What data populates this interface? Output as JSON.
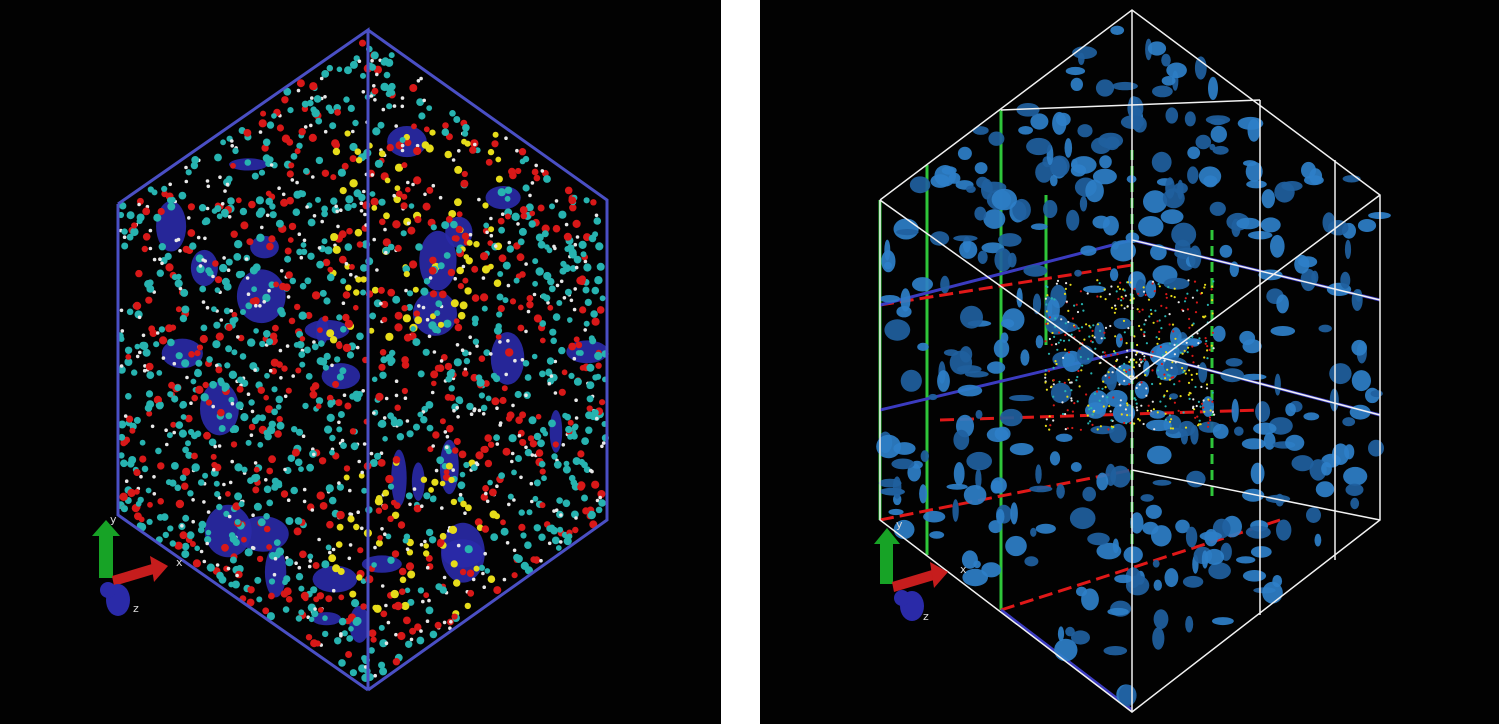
{
  "left_panel": {
    "frame_color": "#4a4fc4",
    "atom_colors": [
      "#27b3b0",
      "#e8e8e8",
      "#d81818",
      "#e6dc1a"
    ],
    "surface_color": "#2a2aa8",
    "axes": {
      "x": "x",
      "y": "y",
      "z": "z"
    }
  },
  "right_panel": {
    "frame_color": "#f2f2f2",
    "grid_colors": {
      "green": "#2fc63a",
      "red": "#e01818",
      "blue": "#3b3bc0"
    },
    "surface_color": "#2e7fc8",
    "axes": {
      "x": "x",
      "y": "y",
      "z": "z"
    }
  }
}
